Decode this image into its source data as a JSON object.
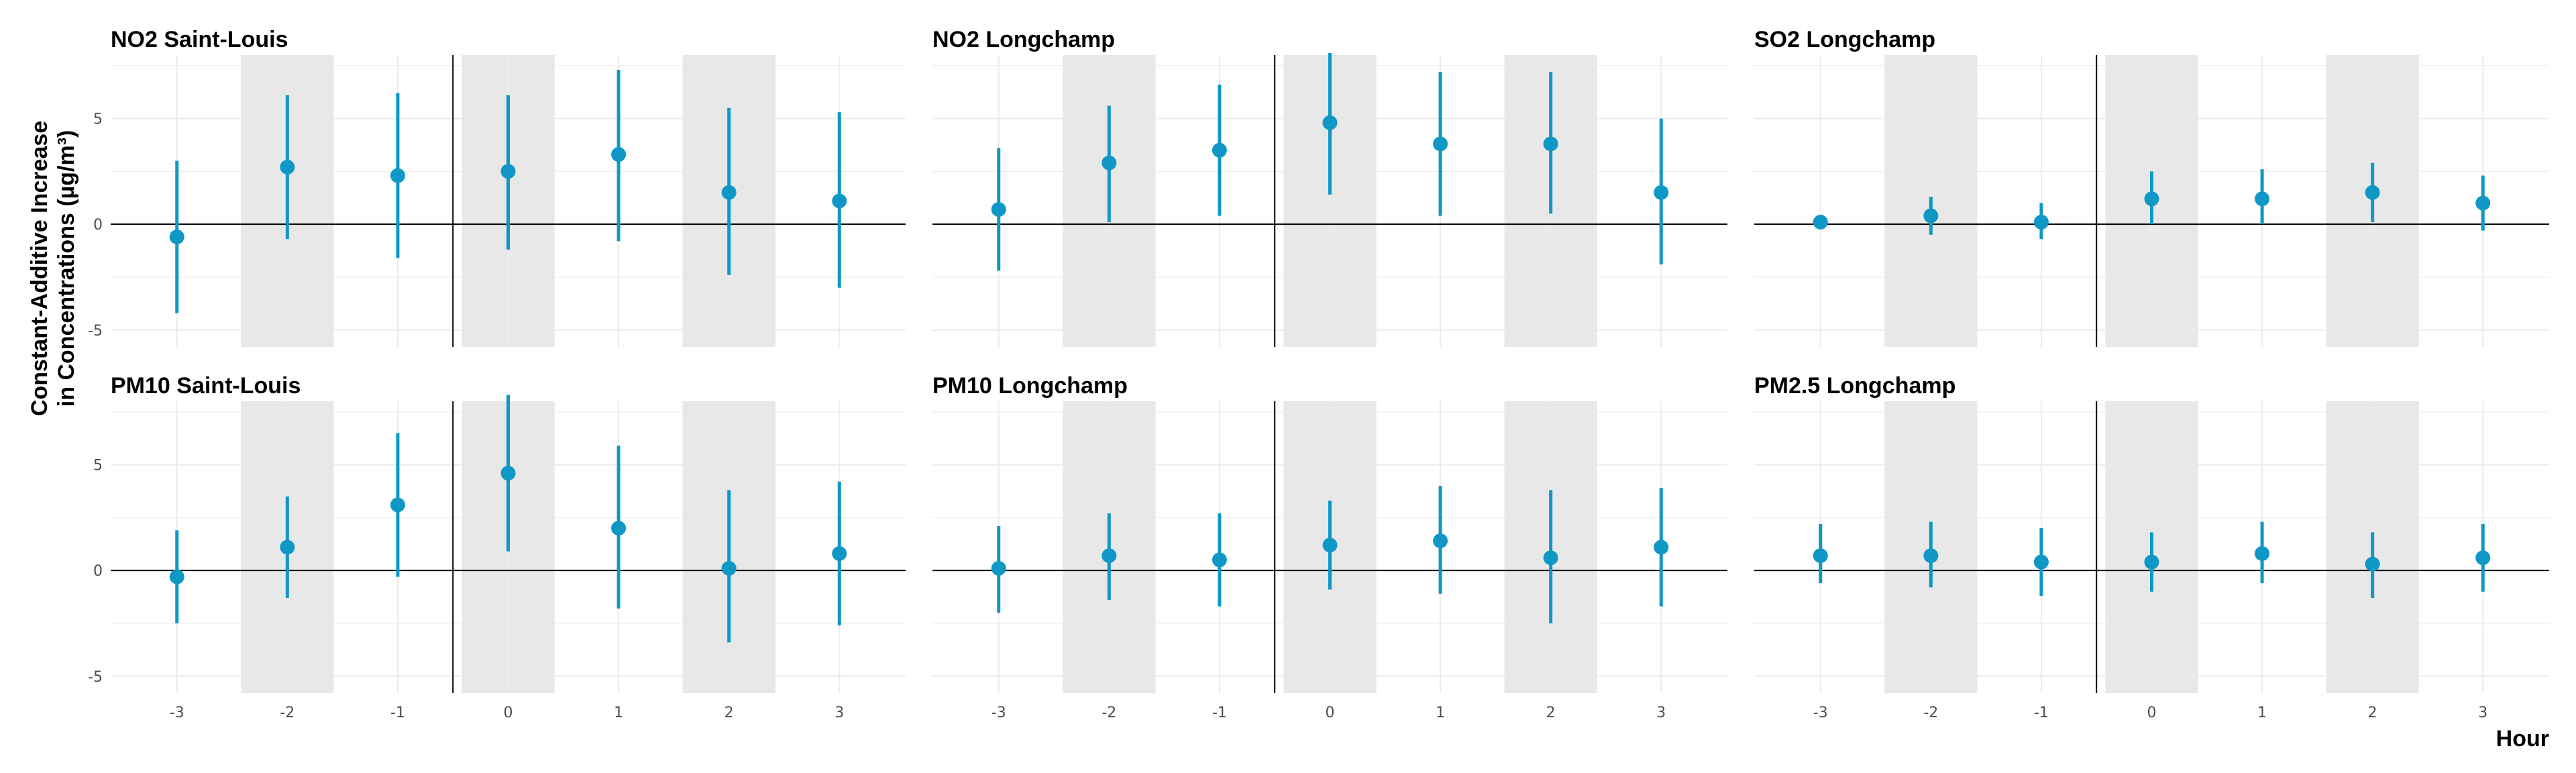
{
  "chart_data": {
    "type": "scatter",
    "subtype": "point-range",
    "xlabel": "Hour",
    "ylabel": "Constant-Additive Increase\nin Concentrations (µg/m³)",
    "ylim": [
      -5.8,
      8.0
    ],
    "y_ticks": [
      -5,
      0,
      5
    ],
    "x_ticks": [
      -3,
      -2,
      -1,
      0,
      1,
      2,
      3
    ],
    "shaded_hours": [
      -2,
      0,
      2
    ],
    "vertical_line_at": -0.5,
    "horizontal_line_at": 0,
    "grid": true,
    "colors": {
      "point": "#0f98c6",
      "shade": "#e8e8e8",
      "grid": "#ebebeb",
      "reference_line": "#000000"
    },
    "panels": [
      {
        "title": "NO2 Saint-Louis",
        "points": [
          {
            "x": -3,
            "y": -0.6,
            "low": -4.2,
            "high": 3.0
          },
          {
            "x": -2,
            "y": 2.7,
            "low": -0.7,
            "high": 6.1
          },
          {
            "x": -1,
            "y": 2.3,
            "low": -1.6,
            "high": 6.2
          },
          {
            "x": 0,
            "y": 2.5,
            "low": -1.2,
            "high": 6.1
          },
          {
            "x": 1,
            "y": 3.3,
            "low": -0.8,
            "high": 7.3
          },
          {
            "x": 2,
            "y": 1.5,
            "low": -2.4,
            "high": 5.5
          },
          {
            "x": 3,
            "y": 1.1,
            "low": -3.0,
            "high": 5.3
          }
        ]
      },
      {
        "title": "NO2 Longchamp",
        "points": [
          {
            "x": -3,
            "y": 0.7,
            "low": -2.2,
            "high": 3.6
          },
          {
            "x": -2,
            "y": 2.9,
            "low": 0.1,
            "high": 5.6
          },
          {
            "x": -1,
            "y": 3.5,
            "low": 0.4,
            "high": 6.6
          },
          {
            "x": 0,
            "y": 4.8,
            "low": 1.4,
            "high": 8.1
          },
          {
            "x": 1,
            "y": 3.8,
            "low": 0.4,
            "high": 7.2
          },
          {
            "x": 2,
            "y": 3.8,
            "low": 0.5,
            "high": 7.2
          },
          {
            "x": 3,
            "y": 1.5,
            "low": -1.9,
            "high": 5.0
          }
        ]
      },
      {
        "title": "SO2 Longchamp",
        "points": [
          {
            "x": -3,
            "y": 0.1,
            "low": -0.2,
            "high": 0.4
          },
          {
            "x": -2,
            "y": 0.4,
            "low": -0.5,
            "high": 1.3
          },
          {
            "x": -1,
            "y": 0.1,
            "low": -0.7,
            "high": 1.0
          },
          {
            "x": 0,
            "y": 1.2,
            "low": 0.0,
            "high": 2.5
          },
          {
            "x": 1,
            "y": 1.2,
            "low": 0.0,
            "high": 2.6
          },
          {
            "x": 2,
            "y": 1.5,
            "low": 0.1,
            "high": 2.9
          },
          {
            "x": 3,
            "y": 1.0,
            "low": -0.3,
            "high": 2.3
          }
        ]
      },
      {
        "title": "PM10 Saint-Louis",
        "points": [
          {
            "x": -3,
            "y": -0.3,
            "low": -2.5,
            "high": 1.9
          },
          {
            "x": -2,
            "y": 1.1,
            "low": -1.3,
            "high": 3.5
          },
          {
            "x": -1,
            "y": 3.1,
            "low": -0.3,
            "high": 6.5
          },
          {
            "x": 0,
            "y": 4.6,
            "low": 0.9,
            "high": 8.3
          },
          {
            "x": 1,
            "y": 2.0,
            "low": -1.8,
            "high": 5.9
          },
          {
            "x": 2,
            "y": 0.1,
            "low": -3.4,
            "high": 3.8
          },
          {
            "x": 3,
            "y": 0.8,
            "low": -2.6,
            "high": 4.2
          }
        ]
      },
      {
        "title": "PM10 Longchamp",
        "points": [
          {
            "x": -3,
            "y": 0.1,
            "low": -2.0,
            "high": 2.1
          },
          {
            "x": -2,
            "y": 0.7,
            "low": -1.4,
            "high": 2.7
          },
          {
            "x": -1,
            "y": 0.5,
            "low": -1.7,
            "high": 2.7
          },
          {
            "x": 0,
            "y": 1.2,
            "low": -0.9,
            "high": 3.3
          },
          {
            "x": 1,
            "y": 1.4,
            "low": -1.1,
            "high": 4.0
          },
          {
            "x": 2,
            "y": 0.6,
            "low": -2.5,
            "high": 3.8
          },
          {
            "x": 3,
            "y": 1.1,
            "low": -1.7,
            "high": 3.9
          }
        ]
      },
      {
        "title": "PM2.5 Longchamp",
        "points": [
          {
            "x": -3,
            "y": 0.7,
            "low": -0.6,
            "high": 2.2
          },
          {
            "x": -2,
            "y": 0.7,
            "low": -0.8,
            "high": 2.3
          },
          {
            "x": -1,
            "y": 0.4,
            "low": -1.2,
            "high": 2.0
          },
          {
            "x": 0,
            "y": 0.4,
            "low": -1.0,
            "high": 1.8
          },
          {
            "x": 1,
            "y": 0.8,
            "low": -0.6,
            "high": 2.3
          },
          {
            "x": 2,
            "y": 0.3,
            "low": -1.3,
            "high": 1.8
          },
          {
            "x": 3,
            "y": 0.6,
            "low": -1.0,
            "high": 2.2
          }
        ]
      }
    ]
  }
}
